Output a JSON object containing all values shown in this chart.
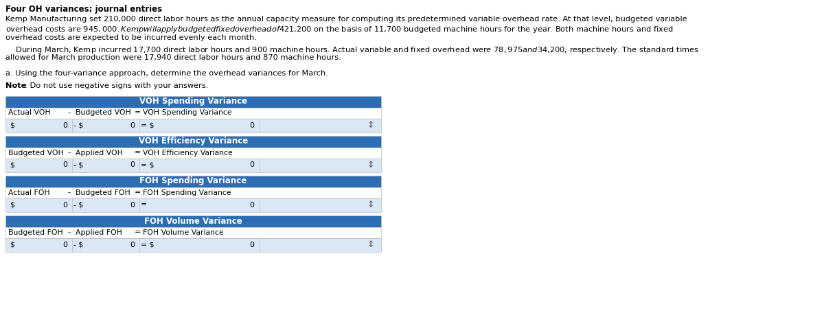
{
  "title": "Four OH variances; journal entries",
  "para1_lines": [
    "Kemp Manufacturing set 210,000 direct labor hours as the annual capacity measure for computing its predetermined variable overhead rate. At that level, budgeted variable",
    "overhead costs are $945,000. Kemp will apply budgeted fixed overhead of $421,200 on the basis of 11,700 budgeted machine hours for the year. Both machine hours and fixed",
    "overhead costs are expected to be incurred evenly each month."
  ],
  "para2_lines": [
    "    During March, Kemp incurred 17,700 direct labor hours and 900 machine hours. Actual variable and fixed overhead were $78,975 and $34,200, respectively. The standard times",
    "allowed for March production were 17,940 direct labor hours and 870 machine hours."
  ],
  "instruction": "a. Using the four-variance approach, determine the overhead variances for March.",
  "note_bold": "Note",
  "note_rest": ": Do not use negative signs with your answers.",
  "header_bg": "#2D6DB4",
  "header_text_color": "#FFFFFF",
  "row_white_bg": "#FFFFFF",
  "row_blue_bg": "#DAE8F5",
  "border_color": "#BBBBBB",
  "text_color": "#000000",
  "spinner_color": "#555555",
  "tables": [
    {
      "header": "VOH Spending Variance",
      "label_col1": "Actual VOH",
      "label_col2": "Budgeted VOH",
      "label_col3": "VOH Spending Variance",
      "has_dollar_result": true
    },
    {
      "header": "VOH Efficiency Variance",
      "label_col1": "Budgeted VOH",
      "label_col2": "Applied VOH",
      "label_col3": "VOH Efficiency Variance",
      "has_dollar_result": true
    },
    {
      "header": "FOH Spending Variance",
      "label_col1": "Actual FOH",
      "label_col2": "Budgeted FOH",
      "label_col3": "FOH Spending Variance",
      "has_dollar_result": false
    },
    {
      "header": "FOH Volume Variance",
      "label_col1": "Budgeted FOH",
      "label_col2": "Applied FOH",
      "label_col3": "FOH Volume Variance",
      "has_dollar_result": true
    }
  ],
  "fig_width": 12.0,
  "fig_height": 4.75,
  "dpi": 100
}
